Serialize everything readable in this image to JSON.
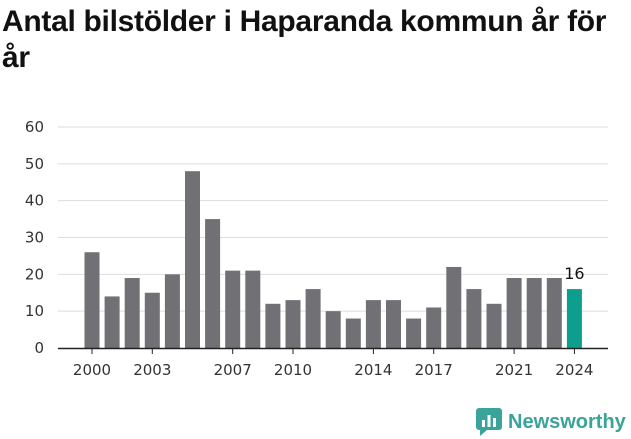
{
  "title": "Antal bilstölder i Haparanda kommun år för år",
  "brand": {
    "name": "Newsworthy",
    "icon": "bar-chart-speech-icon"
  },
  "colors": {
    "bar": "#707075",
    "highlight": "#0e9e8e",
    "grid": "#dddddd",
    "brand": "#3aa39a"
  },
  "chart_data": {
    "type": "bar",
    "title": "Antal bilstölder i Haparanda kommun år för år",
    "xlabel": "",
    "ylabel": "",
    "categories": [
      "2000",
      "2001",
      "2002",
      "2003",
      "2004",
      "2005",
      "2006",
      "2007",
      "2008",
      "2009",
      "2010",
      "2011",
      "2012",
      "2013",
      "2014",
      "2015",
      "2016",
      "2017",
      "2018",
      "2019",
      "2020",
      "2021",
      "2022",
      "2023",
      "2024"
    ],
    "values": [
      26,
      14,
      19,
      15,
      20,
      48,
      35,
      21,
      21,
      12,
      13,
      16,
      10,
      8,
      13,
      13,
      8,
      11,
      22,
      16,
      12,
      19,
      19,
      19,
      16
    ],
    "ylim": [
      0,
      60
    ],
    "yticks": [
      "0",
      "10",
      "20",
      "30",
      "40",
      "50",
      "60"
    ],
    "xticks": [
      "2000",
      "2003",
      "2007",
      "2010",
      "2014",
      "2017",
      "2021",
      "2024"
    ],
    "highlight": {
      "category": "2024",
      "label": "16"
    },
    "grid": true
  }
}
